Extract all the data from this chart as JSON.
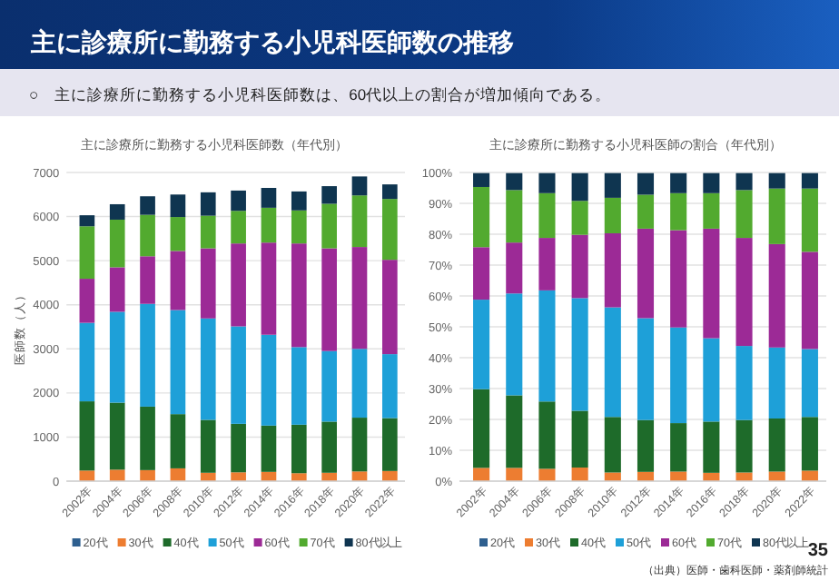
{
  "chart_data": [
    {
      "type": "other",
      "title": "主に診療所に勤務する小児科医師数の推移",
      "subtitle": "○　主に診療所に勤務する小児科医師数は、60代以上の割合が増加傾向である。",
      "annotations": [
        "35",
        "（出典）医師・歯科医師・薬剤師統計"
      ]
    },
    {
      "type": "bar",
      "title": "主に診療所に勤務する小児科医師数（年代別）",
      "ylabel": "医師数（人）",
      "stacked": true,
      "grid": "y",
      "legend": "bottom",
      "categories": [
        "2002年",
        "2004年",
        "2006年",
        "2008年",
        "2010年",
        "2012年",
        "2014年",
        "2016年",
        "2018年",
        "2020年",
        "2022年"
      ],
      "ylim": [
        0,
        7000
      ],
      "yticks": [
        0,
        1000,
        2000,
        3000,
        4000,
        5000,
        6000,
        7000
      ],
      "series": [
        {
          "name": "20代",
          "color": "#2e5f8f",
          "values": [
            null,
            null,
            null,
            null,
            null,
            null,
            null,
            null,
            null,
            null,
            null
          ]
        },
        {
          "name": "30代",
          "color": "#ed7d31",
          "values": [
            240,
            260,
            250,
            290,
            190,
            200,
            210,
            180,
            190,
            220,
            230
          ]
        },
        {
          "name": "40代",
          "color": "#1e6b2a",
          "values": [
            1570,
            1520,
            1440,
            1230,
            1200,
            1100,
            1050,
            1100,
            1160,
            1220,
            1200
          ]
        },
        {
          "name": "50代",
          "color": "#1ea0d8",
          "values": [
            1780,
            2060,
            2330,
            2360,
            2300,
            2210,
            2060,
            1760,
            1600,
            1560,
            1450
          ]
        },
        {
          "name": "60代",
          "color": "#9c2a96",
          "values": [
            1000,
            1010,
            1080,
            1340,
            1590,
            1880,
            2090,
            2350,
            2330,
            2310,
            2140
          ]
        },
        {
          "name": "70代",
          "color": "#52aa2f",
          "values": [
            1190,
            1080,
            940,
            770,
            740,
            740,
            790,
            750,
            1010,
            1170,
            1380
          ]
        },
        {
          "name": "80代以上",
          "color": "#0f3550",
          "values": [
            250,
            350,
            420,
            510,
            530,
            460,
            450,
            430,
            400,
            430,
            330
          ]
        }
      ]
    },
    {
      "type": "bar",
      "title": "主に診療所に勤務する小児科医師の割合（年代別）",
      "stacked": true,
      "grid": "y",
      "legend": "bottom",
      "categories": [
        "2002年",
        "2004年",
        "2006年",
        "2008年",
        "2010年",
        "2012年",
        "2014年",
        "2016年",
        "2018年",
        "2020年",
        "2022年"
      ],
      "ylim": [
        0,
        100
      ],
      "yticks": [
        {
          "value": 0,
          "label": "0%"
        },
        {
          "value": 10,
          "label": "10%"
        },
        {
          "value": 20,
          "label": "20%"
        },
        {
          "value": 30,
          "label": "30%"
        },
        {
          "value": 40,
          "label": "40%"
        },
        {
          "value": 50,
          "label": "50%"
        },
        {
          "value": 60,
          "label": "60%"
        },
        {
          "value": 70,
          "label": "70%"
        },
        {
          "value": 80,
          "label": "80%"
        },
        {
          "value": 90,
          "label": "90%"
        },
        {
          "value": 100,
          "label": "100%"
        }
      ],
      "series": [
        {
          "name": "20代",
          "color": "#2e5f8f",
          "values": [
            null,
            null,
            null,
            null,
            null,
            null,
            null,
            null,
            null,
            null,
            null
          ]
        },
        {
          "name": "30代",
          "color": "#ed7d31",
          "values": [
            4.3,
            4.3,
            4,
            4.4,
            2.8,
            3,
            3.1,
            2.7,
            2.8,
            3.1,
            3.4
          ]
        },
        {
          "name": "40代",
          "color": "#1e6b2a",
          "values": [
            25.5,
            23.5,
            21.8,
            18.4,
            18,
            16.8,
            15.7,
            16.6,
            17,
            17.2,
            17.4
          ]
        },
        {
          "name": "50代",
          "color": "#1ea0d8",
          "values": [
            29,
            33,
            36,
            36.5,
            35.5,
            33,
            31,
            27,
            24,
            23,
            22
          ]
        },
        {
          "name": "60代",
          "color": "#9c2a96",
          "values": [
            17,
            16.5,
            17,
            20.5,
            24,
            29,
            31.5,
            35.5,
            35,
            33.5,
            31.5
          ]
        },
        {
          "name": "70代",
          "color": "#52aa2f",
          "values": [
            19.5,
            17,
            14.5,
            11,
            11.5,
            11,
            12,
            11.5,
            15.5,
            18,
            20.5
          ]
        },
        {
          "name": "80代以上",
          "color": "#0f3550",
          "values": [
            4.5,
            5.5,
            6.5,
            9,
            8,
            7,
            6.5,
            6.5,
            5.5,
            5,
            5
          ]
        }
      ]
    }
  ]
}
